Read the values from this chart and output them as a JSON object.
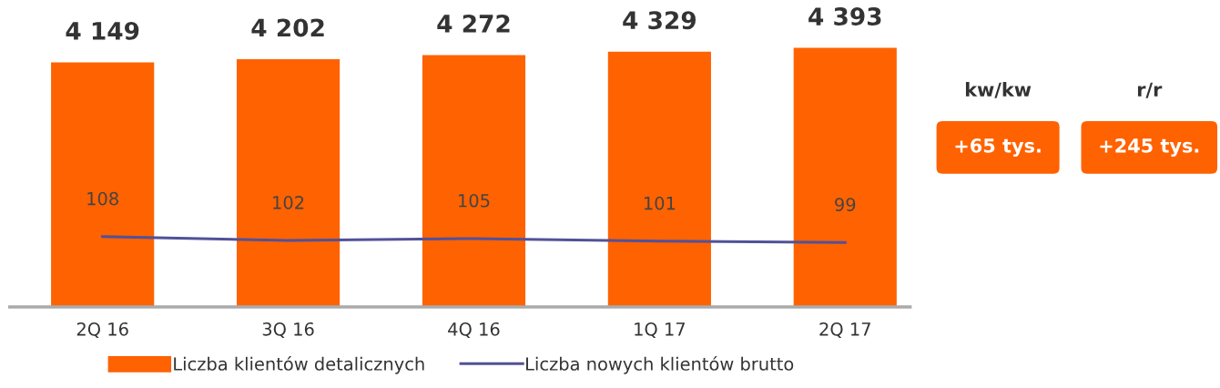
{
  "chart_data": {
    "type": "bar",
    "categories": [
      "2Q 16",
      "3Q 16",
      "4Q 16",
      "1Q 17",
      "2Q 17"
    ],
    "series": [
      {
        "name": "Liczba klientów detalicznych",
        "color": "#ff6200",
        "values": [
          4149,
          4202,
          4272,
          4329,
          4393
        ],
        "value_labels": [
          "4 149",
          "4 202",
          "4 272",
          "4 329",
          "4 393"
        ]
      },
      {
        "name": "Liczba nowych klientów brutto",
        "type": "line",
        "axis": "y2",
        "color": "#525199",
        "values": [
          108,
          102,
          105,
          101,
          99
        ]
      }
    ],
    "data_labels": true,
    "legend": "bottom",
    "grid": false,
    "tick_labels": "x",
    "marker": "none",
    "line_style": "solid",
    "annotations": [
      "kw/kw",
      "r/r",
      "+65 tys.",
      "+245 tys."
    ]
  }
}
